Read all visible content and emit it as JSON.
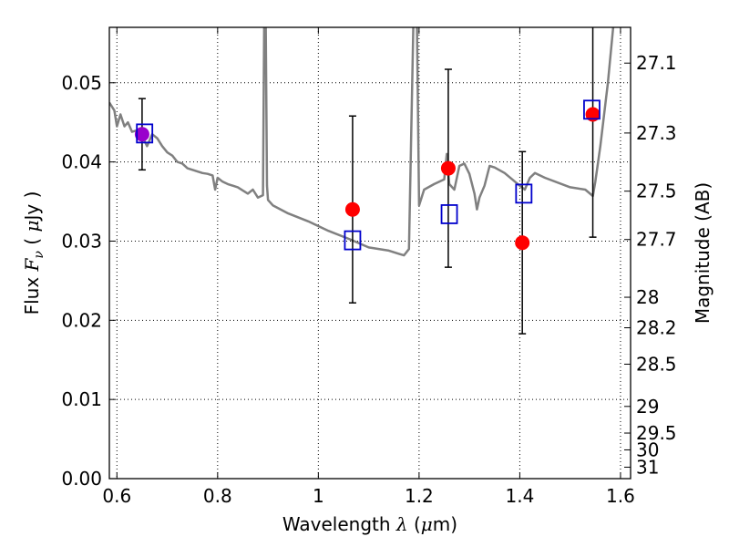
{
  "chart_data": {
    "type": "scatter",
    "xlabel": {
      "main": "Wavelength",
      "var": "λ",
      "unit_open": "(",
      "unit_mu": "μ",
      "unit_rest": "m)"
    },
    "ylabel": {
      "main": "Flux",
      "var": "F",
      "sub": "ν",
      "unit_open": "(",
      "unit_mu": "μ",
      "unit_rest": "Jy )"
    },
    "y2label": "Magnitude (AB)",
    "xlim": [
      0.585,
      1.62
    ],
    "ylim": [
      0.0,
      0.057
    ],
    "grid": true,
    "x_ticks": [
      {
        "v": 0.6,
        "label": "0.6"
      },
      {
        "v": 0.8,
        "label": "0.8"
      },
      {
        "v": 1.0,
        "label": "1"
      },
      {
        "v": 1.2,
        "label": "1.2"
      },
      {
        "v": 1.4,
        "label": "1.4"
      },
      {
        "v": 1.6,
        "label": "1.6"
      }
    ],
    "y_ticks": [
      {
        "v": 0.0,
        "label": "0.00"
      },
      {
        "v": 0.01,
        "label": "0.01"
      },
      {
        "v": 0.02,
        "label": "0.02"
      },
      {
        "v": 0.03,
        "label": "0.03"
      },
      {
        "v": 0.04,
        "label": "0.04"
      },
      {
        "v": 0.05,
        "label": "0.05"
      }
    ],
    "mag_ticks": [
      {
        "v": 27.1,
        "label": "27.1"
      },
      {
        "v": 27.3,
        "label": "27.3"
      },
      {
        "v": 27.5,
        "label": "27.5"
      },
      {
        "v": 27.7,
        "label": "27.7"
      },
      {
        "v": 28.0,
        "label": "28"
      },
      {
        "v": 28.2,
        "label": "28.2"
      },
      {
        "v": 28.5,
        "label": "28.5"
      },
      {
        "v": 29.0,
        "label": "29"
      },
      {
        "v": 29.5,
        "label": "29.5"
      },
      {
        "v": 30.0,
        "label": "30"
      },
      {
        "v": 31.0,
        "label": "31"
      }
    ],
    "spectrum": {
      "color": "#808080",
      "x": [
        0.585,
        0.595,
        0.6,
        0.607,
        0.615,
        0.622,
        0.63,
        0.64,
        0.65,
        0.66,
        0.67,
        0.68,
        0.69,
        0.7,
        0.71,
        0.72,
        0.73,
        0.74,
        0.75,
        0.76,
        0.77,
        0.78,
        0.79,
        0.795,
        0.8,
        0.81,
        0.82,
        0.84,
        0.86,
        0.87,
        0.88,
        0.89,
        0.893,
        0.895,
        0.898,
        0.9,
        0.91,
        0.94,
        0.98,
        1.02,
        1.06,
        1.1,
        1.14,
        1.16,
        1.17,
        1.18,
        1.19,
        1.195,
        1.2,
        1.21,
        1.23,
        1.25,
        1.255,
        1.26,
        1.27,
        1.28,
        1.29,
        1.3,
        1.31,
        1.315,
        1.32,
        1.33,
        1.34,
        1.35,
        1.37,
        1.4,
        1.41,
        1.42,
        1.43,
        1.45,
        1.5,
        1.53,
        1.545,
        1.55,
        1.56,
        1.575,
        1.59,
        1.6
      ],
      "y": [
        0.0475,
        0.0465,
        0.0445,
        0.046,
        0.0445,
        0.045,
        0.0438,
        0.044,
        0.0433,
        0.042,
        0.0435,
        0.043,
        0.042,
        0.0412,
        0.0408,
        0.04,
        0.0398,
        0.0392,
        0.039,
        0.0388,
        0.0386,
        0.0385,
        0.0383,
        0.0365,
        0.038,
        0.0375,
        0.0372,
        0.0368,
        0.036,
        0.0365,
        0.0355,
        0.0358,
        0.062,
        0.062,
        0.037,
        0.0352,
        0.0345,
        0.0335,
        0.0325,
        0.0313,
        0.0303,
        0.0292,
        0.0288,
        0.0284,
        0.0282,
        0.029,
        0.062,
        0.062,
        0.0345,
        0.0365,
        0.0372,
        0.0378,
        0.041,
        0.0372,
        0.0365,
        0.0395,
        0.0398,
        0.0385,
        0.036,
        0.034,
        0.0355,
        0.037,
        0.0395,
        0.0393,
        0.0386,
        0.037,
        0.0365,
        0.038,
        0.0386,
        0.038,
        0.0368,
        0.0365,
        0.0357,
        0.0375,
        0.042,
        0.05,
        0.06,
        0.062
      ]
    },
    "series": [
      {
        "marker": "circle",
        "color": "#ff0000",
        "points": [
          {
            "x": 0.65,
            "y": 0.0435,
            "err": 0.0045
          },
          {
            "x": 1.068,
            "y": 0.034,
            "err": 0.0118
          },
          {
            "x": 1.258,
            "y": 0.0392,
            "err": 0.0125
          },
          {
            "x": 1.405,
            "y": 0.0298,
            "err": 0.0115
          },
          {
            "x": 1.545,
            "y": 0.046,
            "err": 0.0155
          }
        ]
      },
      {
        "marker": "square",
        "color": "#0000cc",
        "points": [
          {
            "x": 0.655,
            "y": 0.0436
          },
          {
            "x": 1.068,
            "y": 0.0301
          },
          {
            "x": 1.26,
            "y": 0.0334
          },
          {
            "x": 1.408,
            "y": 0.036
          },
          {
            "x": 1.543,
            "y": 0.0466
          }
        ]
      }
    ],
    "overlap_color": "#9900cc"
  }
}
